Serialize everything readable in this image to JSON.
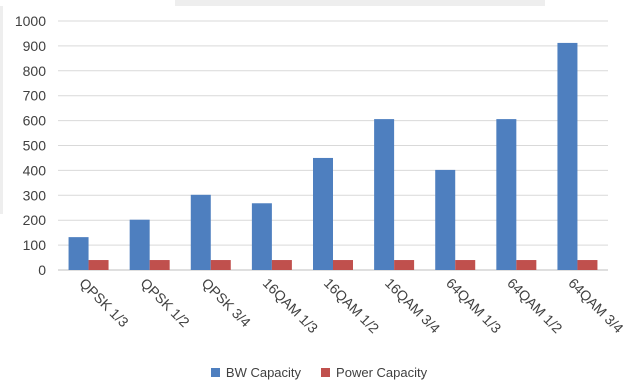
{
  "chart_data": {
    "type": "bar",
    "categories": [
      "QPSK 1/3",
      "QPSK 1/2",
      "QPSK 3/4",
      "16QAM 1/3",
      "16QAM 1/2",
      "16QAM 3/4",
      "64QAM 1/3",
      "64QAM 1/2",
      "64QAM 3/4"
    ],
    "series": [
      {
        "name": "BW Capacity",
        "color": "#4e7fbf",
        "values": [
          132,
          202,
          302,
          268,
          450,
          606,
          402,
          606,
          912
        ]
      },
      {
        "name": "Power Capacity",
        "color": "#c0504d",
        "values": [
          40,
          40,
          40,
          40,
          40,
          40,
          40,
          40,
          40
        ]
      }
    ],
    "ylim": [
      0,
      1000
    ],
    "yticks": [
      0,
      100,
      200,
      300,
      400,
      500,
      600,
      700,
      800,
      900,
      1000
    ],
    "grid": true,
    "legend_position": "bottom",
    "title": "",
    "xlabel": "",
    "ylabel": ""
  }
}
